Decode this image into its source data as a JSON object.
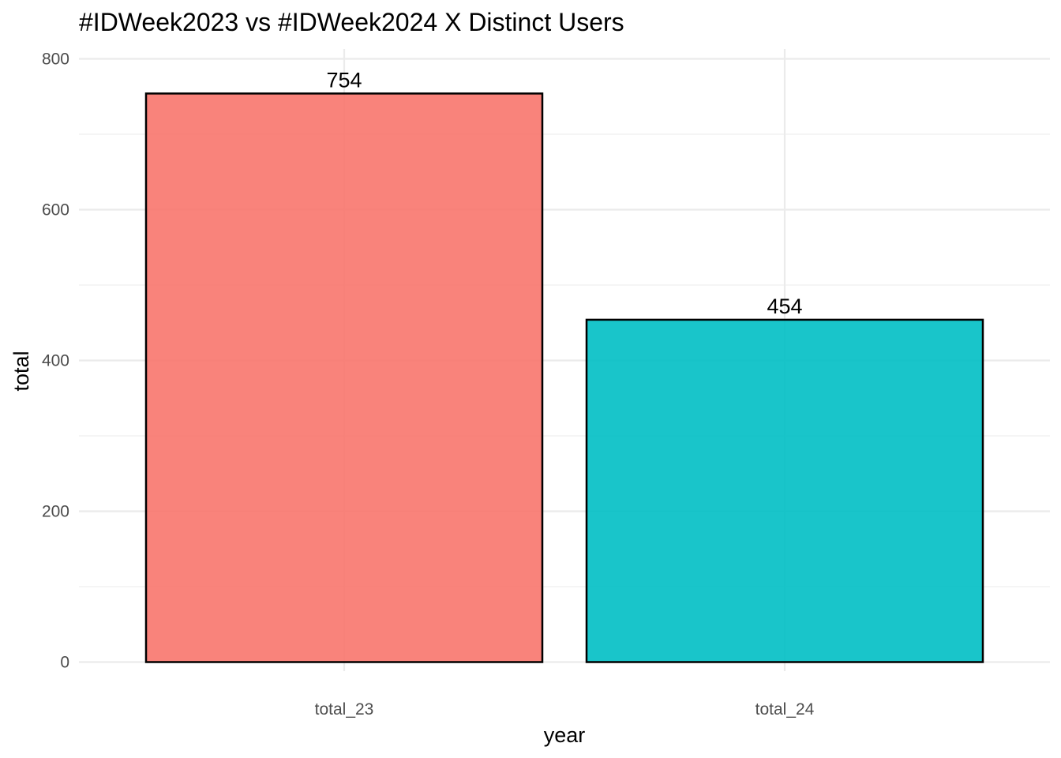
{
  "chart_data": {
    "type": "bar",
    "title": "#IDWeek2023 vs #IDWeek2024 X Distinct Users",
    "xlabel": "year",
    "ylabel": "total",
    "categories": [
      "total_23",
      "total_24"
    ],
    "values": [
      754,
      454
    ],
    "data_labels": [
      "754",
      "454"
    ],
    "colors": [
      "#F8766D",
      "#00BFC4"
    ],
    "bar_opacity": 0.9,
    "bar_outline_color": "#000000",
    "ylim": [
      0,
      800
    ],
    "yticks": [
      0,
      200,
      400,
      600,
      800
    ],
    "ytick_labels": [
      "0",
      "200",
      "400",
      "600",
      "800"
    ],
    "grid": true,
    "legend": "none"
  }
}
